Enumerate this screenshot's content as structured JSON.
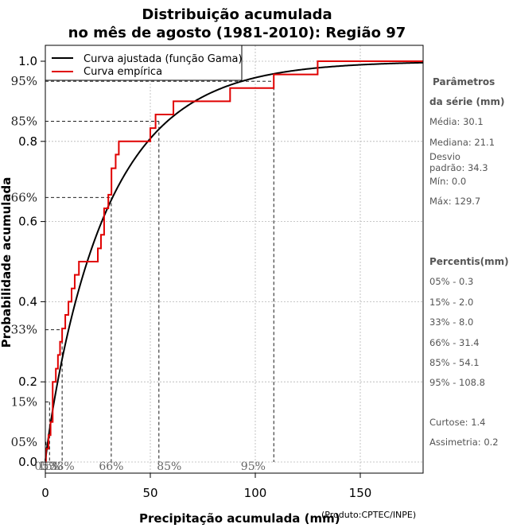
{
  "chart_data": {
    "type": "line",
    "title_line1": "Distribuição acumulada",
    "title_line2": "no mês de agosto (1981-2010): Região 97",
    "xlabel": "Precipitação acumulada (mm)",
    "credit": "(Produto:CPTEC/INPE)",
    "ylabel": "Probabilidade acumulada",
    "xlim": [
      0,
      180
    ],
    "ylim": [
      0,
      1
    ],
    "x_ticks": [
      0,
      50,
      100,
      150
    ],
    "x_tick_labels": [
      "0",
      "50",
      "100",
      "150"
    ],
    "y_ticks": [
      0.0,
      0.2,
      0.4,
      0.6,
      0.8,
      1.0
    ],
    "y_tick_labels": [
      "0.0",
      "0.2",
      "0.4",
      "0.6",
      "0.8",
      "1.0"
    ],
    "grid": true,
    "legend": {
      "position": "top-left",
      "entries": [
        {
          "label": "Curva ajustada (função Gama)",
          "color": "#000000"
        },
        {
          "label": "Curva empírica",
          "color": "#e00000"
        }
      ]
    },
    "gamma_fit": {
      "shape": 0.9,
      "mean": 30.1,
      "color": "#000000"
    },
    "empirical": {
      "color": "#e00000",
      "x": [
        0.3,
        1.5,
        2.5,
        3.5,
        5.0,
        6.0,
        7.0,
        8.0,
        9.5,
        11.0,
        12.5,
        14.0,
        16.0,
        17.5,
        25.0,
        26.5,
        28.0,
        30.0,
        31.5,
        33.5,
        35.0,
        45.0,
        50.0,
        52.5,
        55.0,
        61.0,
        69.5,
        88.0,
        108.8,
        125.0,
        129.7
      ],
      "y": [
        0.033,
        0.067,
        0.1,
        0.2,
        0.233,
        0.267,
        0.3,
        0.333,
        0.367,
        0.4,
        0.433,
        0.467,
        0.5,
        0.5,
        0.533,
        0.567,
        0.633,
        0.667,
        0.733,
        0.767,
        0.8,
        0.8,
        0.833,
        0.867,
        0.867,
        0.9,
        0.9,
        0.933,
        0.967,
        0.967,
        1.0
      ]
    },
    "percentiles": [
      {
        "label": "05%",
        "p": 0.05,
        "x": 0.3
      },
      {
        "label": "15%",
        "p": 0.15,
        "x": 2.0
      },
      {
        "label": "33%",
        "p": 0.33,
        "x": 8.0
      },
      {
        "label": "66%",
        "p": 0.66,
        "x": 31.4
      },
      {
        "label": "85%",
        "p": 0.85,
        "x": 54.1
      },
      {
        "label": "95%",
        "p": 0.95,
        "x": 108.8
      }
    ],
    "percentile_x_marks": [
      {
        "label": "05%",
        "x": 0.8
      },
      {
        "label": "15%",
        "x": 2.5
      },
      {
        "label": "33%",
        "x": 8.0
      },
      {
        "label": "66%",
        "x": 31.4
      },
      {
        "label": "85%",
        "x": 59.0
      },
      {
        "label": "95%",
        "x": 99.0
      }
    ]
  },
  "sidebar": {
    "params_title_1": "Parâmetros",
    "params_title_2": "da série (mm)",
    "media": "Média: 30.1",
    "mediana": "Mediana: 21.1",
    "desvio_1": "Desvio",
    "desvio_2": "padrão: 34.3",
    "min": "Mín: 0.0",
    "max": "Máx: 129.7",
    "percentis_title": "Percentis(mm)",
    "p05": "05% - 0.3",
    "p15": "15% - 2.0",
    "p33": "33% - 8.0",
    "p66": "66% - 31.4",
    "p85": "85% - 54.1",
    "p95": "95% - 108.8",
    "curtose": "Curtose: 1.4",
    "assimetria": "Assimetria: 0.2"
  }
}
